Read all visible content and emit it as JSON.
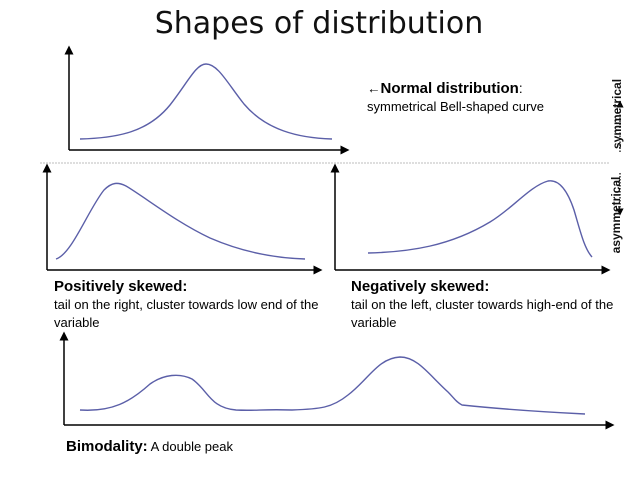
{
  "title": "Shapes of distribution",
  "normal": {
    "arrow": "←",
    "heading": "Normal distribution",
    "colon": ":",
    "description": "symmetrical Bell-shaped curve"
  },
  "positive": {
    "heading": "Positively skewed:",
    "description": "tail on the right, cluster towards low end of the variable"
  },
  "negative": {
    "heading": "Negatively skewed:",
    "description": "tail on the left, cluster towards high-end of the variable"
  },
  "bimodal": {
    "heading": "Bimodality:",
    "description": "A double peak"
  },
  "side_labels": {
    "top": "symmetrical",
    "bottom": "asymmetrical"
  },
  "colors": {
    "curve": "#5b5fa8",
    "axis": "#000000",
    "divider": "#bdbdbd"
  }
}
